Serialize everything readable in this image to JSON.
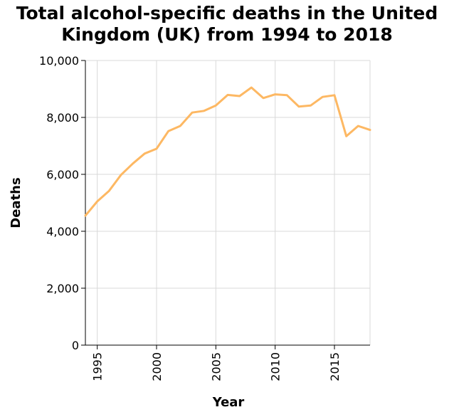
{
  "chart_data": {
    "type": "line",
    "title_lines": [
      "Total alcohol-specific deaths in the United",
      "Kingdom (UK) from 1994 to 2018"
    ],
    "xlabel": "Year",
    "ylabel": "Deaths",
    "xlim": [
      1994,
      2018
    ],
    "ylim": [
      0,
      10000
    ],
    "x_ticks": [
      1995,
      2000,
      2005,
      2010,
      2015
    ],
    "y_ticks": [
      0,
      2000,
      4000,
      6000,
      8000,
      10000
    ],
    "y_tick_labels": [
      "0",
      "2,000",
      "4,000",
      "6,000",
      "8,000",
      "10,000"
    ],
    "grid": true,
    "line_color": "#fdb863",
    "grid_color": "#d9d9d9",
    "series": [
      {
        "x": [
          1994,
          1995,
          1996,
          1997,
          1998,
          1999,
          2000,
          2001,
          2002,
          2003,
          2004,
          2005,
          2006,
          2007,
          2008,
          2009,
          2010,
          2011,
          2012,
          2013,
          2014,
          2015,
          2016,
          2017,
          2018
        ],
        "values": [
          4550,
          5050,
          5420,
          5980,
          6380,
          6730,
          6900,
          7520,
          7700,
          8170,
          8230,
          8420,
          8790,
          8750,
          9050,
          8680,
          8810,
          8780,
          8380,
          8420,
          8720,
          8780,
          7340,
          7700,
          7560
        ]
      }
    ]
  }
}
